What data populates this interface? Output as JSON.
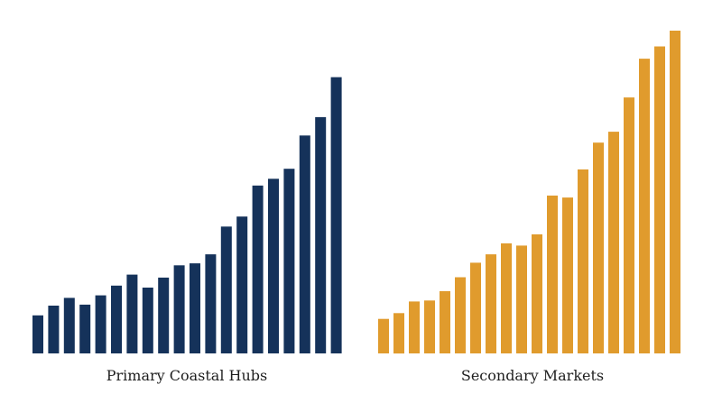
{
  "chart_data": [
    {
      "type": "bar",
      "title": "Primary Coastal Hubs",
      "color": "#15325a",
      "ylim": [
        0,
        100
      ],
      "axes_visible": false,
      "categories": [
        "",
        "",
        "",
        "",
        "",
        "",
        "",
        "",
        "",
        "",
        "",
        "",
        "",
        "",
        "",
        "",
        "",
        "",
        "",
        ""
      ],
      "values": [
        11.8,
        14.8,
        17.2,
        15.1,
        18.0,
        21.0,
        24.4,
        20.4,
        23.5,
        27.3,
        27.9,
        30.7,
        39.3,
        42.4,
        52.0,
        54.1,
        57.2,
        67.5,
        73.2,
        85.6
      ]
    },
    {
      "type": "bar",
      "title": "Secondary Markets",
      "color": "#e09b2d",
      "ylim": [
        0,
        100
      ],
      "axes_visible": false,
      "categories": [
        "",
        "",
        "",
        "",
        "",
        "",
        "",
        "",
        "",
        "",
        "",
        "",
        "",
        "",
        "",
        "",
        "",
        "",
        "",
        ""
      ],
      "values": [
        10.7,
        12.5,
        16.1,
        16.4,
        19.3,
        23.6,
        28.1,
        30.7,
        34.1,
        33.4,
        36.9,
        48.9,
        48.3,
        57.0,
        65.3,
        68.7,
        79.3,
        91.3,
        95.1,
        100.0
      ]
    }
  ]
}
